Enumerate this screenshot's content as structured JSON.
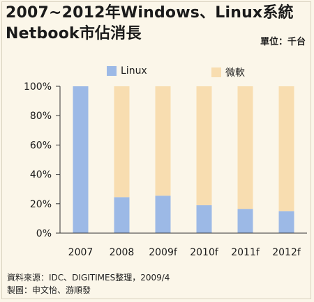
{
  "title_line1": "2007~2012年Windows、Linux系統",
  "title_line2": "Netbook市佔消長",
  "unit": "單位：千台",
  "chart_data": {
    "type": "bar",
    "stacked": true,
    "categories": [
      "2007",
      "2008",
      "2009f",
      "2010f",
      "2011f",
      "2012f"
    ],
    "series": [
      {
        "name": "Linux",
        "values": [
          100,
          24.5,
          25.5,
          19,
          16.5,
          15
        ],
        "color": "#9cb9e6"
      },
      {
        "name": "微軟",
        "values": [
          0,
          75.5,
          74.5,
          81,
          83.5,
          85
        ],
        "color": "#f8ddb0"
      }
    ],
    "ylim": [
      0,
      100
    ],
    "yticks": [
      "0%",
      "20%",
      "40%",
      "60%",
      "80%",
      "100%"
    ],
    "legend_position": "top",
    "grid": false
  },
  "footer_line1": "資料來源：IDC、DIGITIMES整理，2009/4",
  "footer_line2": "製圖：申文怡、游順發"
}
